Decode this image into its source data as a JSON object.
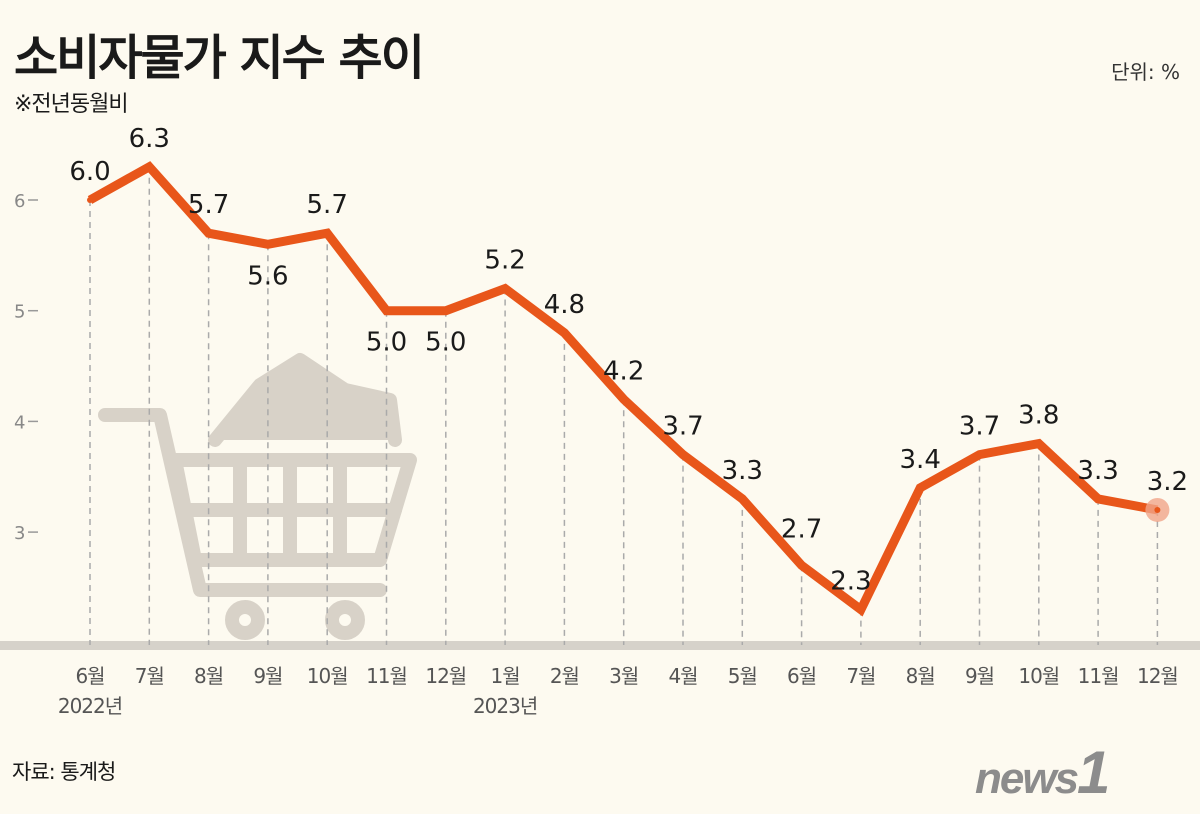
{
  "title": "소비자물가 지수 추이",
  "subtitle": "※전년동월비",
  "unit": "단위: %",
  "source": "자료: 통계청",
  "logo": "news1",
  "colors": {
    "line": "#e8561a",
    "background": "#fdfaf0",
    "grid": "#aaaaaa",
    "highlight": "#f0a58a"
  },
  "chart_data": {
    "type": "line",
    "title": "소비자물가 지수 추이",
    "categories": [
      "6월",
      "7월",
      "8월",
      "9월",
      "10월",
      "11월",
      "12월",
      "1월",
      "2월",
      "3월",
      "4월",
      "5월",
      "6월",
      "7월",
      "8월",
      "9월",
      "10월",
      "11월",
      "12월"
    ],
    "year_labels": [
      {
        "index": 0,
        "label": "2022년"
      },
      {
        "index": 7,
        "label": "2023년"
      }
    ],
    "values": [
      6.0,
      6.3,
      5.7,
      5.6,
      5.7,
      5.0,
      5.0,
      5.2,
      4.8,
      4.2,
      3.7,
      3.3,
      2.7,
      2.3,
      3.4,
      3.7,
      3.8,
      3.3,
      3.2
    ],
    "data_labels": [
      "6.0",
      "6.3",
      "5.7",
      "5.6",
      "5.7",
      "5.0",
      "5.0",
      "5.2",
      "4.8",
      "4.2",
      "3.7",
      "3.3",
      "2.7",
      "2.3",
      "3.4",
      "3.7",
      "3.8",
      "3.3",
      "3.2"
    ],
    "yticks": [
      3,
      4,
      5,
      6
    ],
    "ylim": [
      2,
      6.5
    ],
    "grid": "vertical dashed drop lines",
    "legend": "none"
  }
}
